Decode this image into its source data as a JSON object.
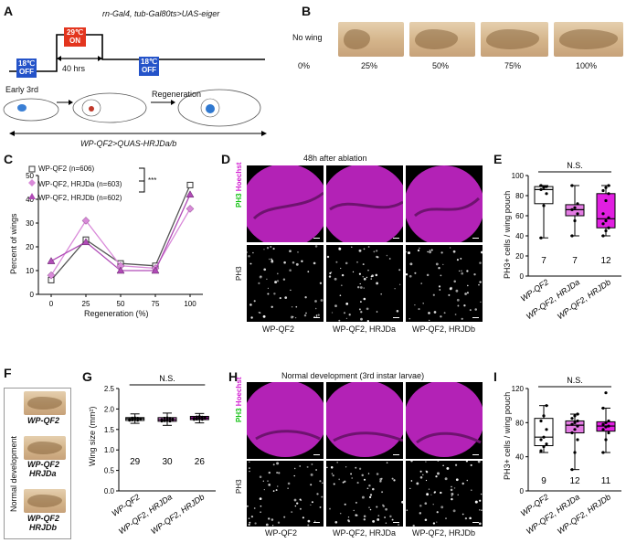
{
  "panels": {
    "A": {
      "label": "A",
      "genotype": "rn-Gal4, tub-Gal80ts>UAS-eiger",
      "temp1": [
        "18℃",
        "OFF"
      ],
      "temp2": [
        "29℃",
        "ON"
      ],
      "temp3": [
        "18℃",
        "OFF"
      ],
      "duration": "40 hrs",
      "early": "Early 3rd",
      "regen": "Regeneration",
      "wp": "WP-QF2>QUAS-HRJDa/b"
    },
    "B": {
      "label": "B",
      "nowing": "No wing",
      "categories": [
        "0%",
        "25%",
        "50%",
        "75%",
        "100%"
      ]
    },
    "C": {
      "label": "C",
      "ylabel": "Percent of wings",
      "xlabel": "Regeneration (%)",
      "legend": [
        "WP-QF2 (n=606)",
        "WP-QF2, HRJDa (n=603)",
        "WP-QF2, HRJDb (n=602)"
      ],
      "sig": "***"
    },
    "D": {
      "label": "D",
      "title": "48h after ablation",
      "ph3": "PH3",
      "hoechst": "Hoechst",
      "genos": [
        "WP-QF2",
        "WP-QF2, HRJDa",
        "WP-QF2, HRJDb"
      ]
    },
    "E": {
      "label": "E",
      "ylabel": "PH3+ cells / wing pouch",
      "ns": "N.S.",
      "ns_values": [
        "7",
        "7",
        "12"
      ]
    },
    "F": {
      "label": "F",
      "side": "Normal development",
      "genos": [
        [
          "WP-QF2",
          ""
        ],
        [
          "WP-QF2",
          "HRJDa"
        ],
        [
          "WP-QF2",
          "HRJDb"
        ]
      ]
    },
    "G": {
      "label": "G",
      "ylabel": "Wing size (mm²)",
      "ns": "N.S.",
      "ns_values": [
        "29",
        "30",
        "26"
      ]
    },
    "H": {
      "label": "H",
      "title": "Normal development (3rd instar larvae)",
      "ph3": "PH3",
      "hoechst": "Hoechst",
      "genos": [
        "WP-QF2",
        "WP-QF2, HRJDa",
        "WP-QF2, HRJDb"
      ]
    },
    "I": {
      "label": "I",
      "ylabel": "PH3+ cells / wing pouch",
      "ns": "N.S.",
      "ns_values": [
        "9",
        "12",
        "11"
      ]
    }
  },
  "chart_data": [
    {
      "type": "line",
      "panel": "C",
      "x": [
        0,
        25,
        50,
        75,
        100
      ],
      "xlabel": "Regeneration (%)",
      "ylabel": "Percent of wings",
      "ylim": [
        0,
        50
      ],
      "yticks": [
        0,
        10,
        20,
        30,
        40,
        50
      ],
      "series": [
        {
          "name": "WP-QF2 (n=606)",
          "values": [
            6,
            23,
            13,
            12,
            46
          ]
        },
        {
          "name": "WP-QF2, HRJDa (n=603)",
          "values": [
            8,
            31,
            12,
            11,
            36
          ]
        },
        {
          "name": "WP-QF2, HRJDb (n=602)",
          "values": [
            14,
            22,
            10,
            10,
            42
          ]
        }
      ],
      "colors": [
        "#ffffff",
        "#d98ad9",
        "#b04bb6"
      ]
    },
    {
      "type": "box",
      "panel": "E",
      "categories": [
        "WP-QF2",
        "WP-QF2, HRJDa",
        "WP-QF2, HRJDb"
      ],
      "ylim": [
        0,
        100
      ],
      "yticks": [
        0,
        20,
        40,
        60,
        80,
        100
      ],
      "boxes": [
        {
          "min": 38,
          "q1": 72,
          "median": 86,
          "q3": 89,
          "max": 90,
          "n": "7"
        },
        {
          "min": 40,
          "q1": 60,
          "median": 66,
          "q3": 71,
          "max": 90,
          "n": "7"
        },
        {
          "min": 40,
          "q1": 48,
          "median": 57,
          "q3": 82,
          "max": 90,
          "n": "12"
        }
      ],
      "points": [
        [
          38,
          70,
          82,
          86,
          88,
          89,
          90
        ],
        [
          40,
          55,
          62,
          66,
          68,
          72,
          90
        ],
        [
          40,
          45,
          48,
          52,
          55,
          58,
          62,
          75,
          82,
          85,
          88,
          90
        ]
      ],
      "fills": [
        "#ffffff",
        "#e37be3",
        "#e11fe1"
      ]
    },
    {
      "type": "box",
      "panel": "G",
      "categories": [
        "WP-QF2",
        "WP-QF2, HRJDa",
        "WP-QF2, HRJDb"
      ],
      "ylim": [
        0,
        2.5
      ],
      "yticks": [
        0,
        0.5,
        1.0,
        1.5,
        2.0,
        2.5
      ],
      "boxes": [
        {
          "min": 1.65,
          "q1": 1.72,
          "median": 1.76,
          "q3": 1.79,
          "max": 1.88,
          "n": "29"
        },
        {
          "min": 1.6,
          "q1": 1.7,
          "median": 1.74,
          "q3": 1.79,
          "max": 1.9,
          "n": "30"
        },
        {
          "min": 1.66,
          "q1": 1.74,
          "median": 1.78,
          "q3": 1.82,
          "max": 1.89,
          "n": "26"
        }
      ],
      "fills": [
        "#ffffff",
        "#e37be3",
        "#e11fe1"
      ]
    },
    {
      "type": "box",
      "panel": "I",
      "categories": [
        "WP-QF2",
        "WP-QF2, HRJDa",
        "WP-QF2, HRJDb"
      ],
      "ylim": [
        0,
        120
      ],
      "yticks": [
        0,
        40,
        80,
        120
      ],
      "boxes": [
        {
          "min": 45,
          "q1": 53,
          "median": 63,
          "q3": 85,
          "max": 100,
          "n": "9"
        },
        {
          "min": 25,
          "q1": 68,
          "median": 77,
          "q3": 82,
          "max": 90,
          "n": "12"
        },
        {
          "min": 45,
          "q1": 70,
          "median": 76,
          "q3": 81,
          "max": 97,
          "n": "11"
        }
      ],
      "points": [
        [
          47,
          52,
          55,
          60,
          63,
          72,
          82,
          88,
          100
        ],
        [
          25,
          45,
          60,
          68,
          72,
          76,
          78,
          80,
          82,
          85,
          88,
          90
        ],
        [
          45,
          60,
          68,
          72,
          75,
          76,
          78,
          80,
          82,
          97,
          115
        ]
      ],
      "fills": [
        "#ffffff",
        "#e37be3",
        "#e11fe1"
      ]
    }
  ]
}
